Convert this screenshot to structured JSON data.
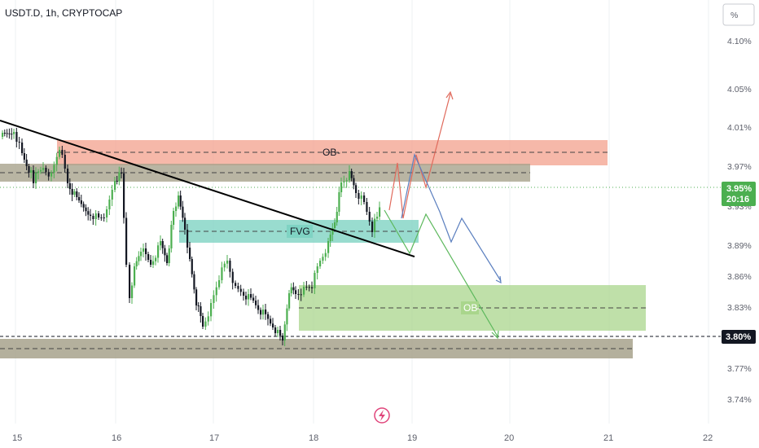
{
  "chart_data": {
    "type": "candlestick",
    "title": "USDT.D, 1h, CRYPTOCAP",
    "unit_button": "%",
    "y_ticks": [
      "4.10%",
      "4.05%",
      "4.01%",
      "3.97%",
      "3.93%",
      "3.89%",
      "3.86%",
      "3.83%",
      "3.80%",
      "3.77%",
      "3.74%"
    ],
    "x_ticks": [
      "15",
      "16",
      "17",
      "18",
      "19",
      "20",
      "21",
      "22"
    ],
    "last_price": {
      "value": "3.95%",
      "countdown": "20:16"
    },
    "marked_level": "3.80%",
    "zones": [
      {
        "label": "OB",
        "kind": "supply",
        "color": "#f3a08c"
      },
      {
        "label": "",
        "kind": "resistance",
        "color": "#a7a28c"
      },
      {
        "label": "FVG",
        "kind": "fair-value-gap",
        "color": "#7fd3c3"
      },
      {
        "label": "OB",
        "kind": "demand",
        "color": "#a9d68c"
      },
      {
        "label": "",
        "kind": "support",
        "color": "#a7a28c"
      }
    ],
    "colors": {
      "up": "#4caf50",
      "down": "#131722",
      "trendline": "#000000",
      "red_path": "#e06a5c",
      "blue_path": "#5b7fbf",
      "green_path": "#5cb85c"
    }
  }
}
